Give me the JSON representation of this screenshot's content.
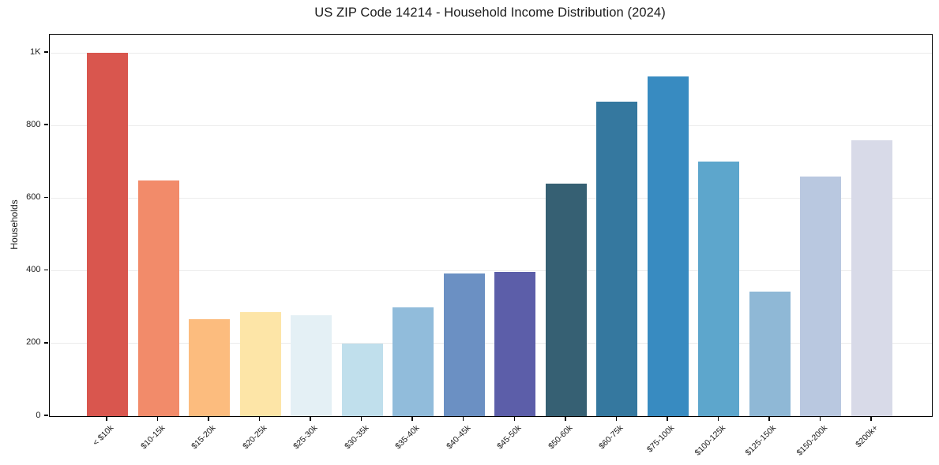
{
  "chart": {
    "title": "US ZIP Code 14214 - Household Income Distribution (2024)",
    "ylabel": "Households"
  },
  "chart_data": {
    "type": "bar",
    "title": "US ZIP Code 14214 - Household Income Distribution (2024)",
    "xlabel": "",
    "ylabel": "Households",
    "categories": [
      "< $10k",
      "$10-15k",
      "$15-20k",
      "$20-25k",
      "$25-30k",
      "$30-35k",
      "$35-40k",
      "$40-45k",
      "$45-50k",
      "$50-60k",
      "$60-75k",
      "$75-100k",
      "$100-125k",
      "$125-150k",
      "$150-200k",
      "$200k+"
    ],
    "values": [
      1000,
      648,
      267,
      287,
      278,
      200,
      300,
      393,
      398,
      641,
      865,
      935,
      700,
      343,
      660,
      760
    ],
    "bar_colors": [
      "#d9564e",
      "#f28b6a",
      "#fcbc7e",
      "#fde5a7",
      "#e4f0f5",
      "#c0dfec",
      "#91bcdb",
      "#6b90c3",
      "#5c5ea9",
      "#366073",
      "#35789f",
      "#388bc1",
      "#5da6cc",
      "#8fb8d6",
      "#b9c8e0",
      "#d8dae8"
    ],
    "ylim": [
      0,
      1050
    ],
    "y_tick_values": [
      0,
      200,
      400,
      600,
      800,
      1000
    ],
    "y_tick_labels": [
      "0",
      "200",
      "400",
      "600",
      "800",
      "1K"
    ],
    "grid": "horizontal-gridlines",
    "legend": "none",
    "x_tick_rotation_deg": -45
  }
}
